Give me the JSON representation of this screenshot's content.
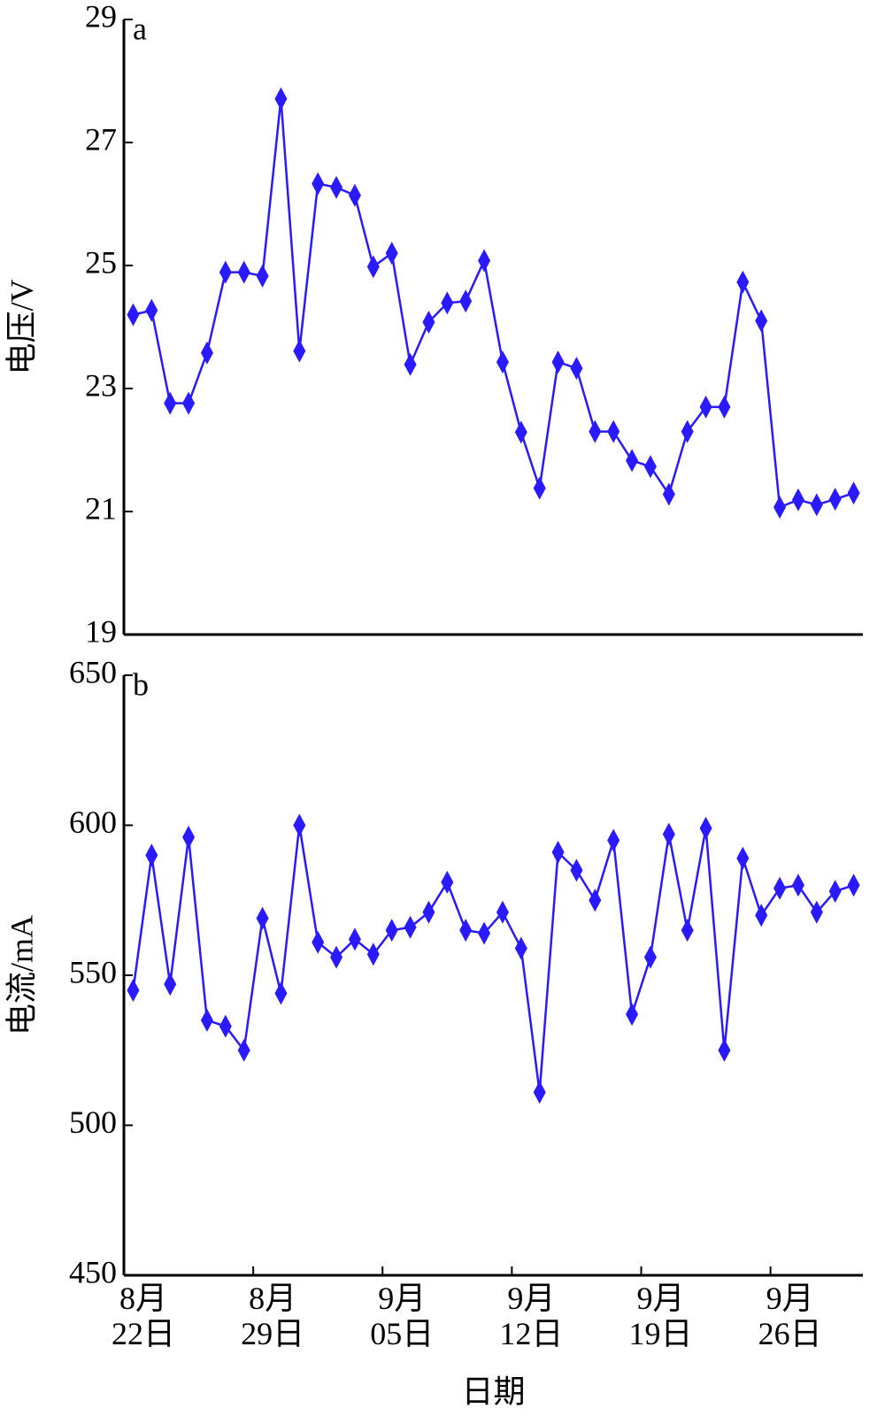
{
  "chart_data": [
    {
      "type": "line",
      "panel_label": "a",
      "ylabel": "电压/V",
      "ylim": [
        19,
        29
      ],
      "yticks": [
        19,
        21,
        23,
        25,
        27,
        29
      ],
      "series": [
        {
          "name": "电压",
          "color": "#2a1aff",
          "marker": "diamond",
          "values": [
            24.2,
            24.27,
            22.76,
            22.76,
            23.58,
            24.89,
            24.89,
            24.83,
            27.71,
            23.61,
            26.33,
            26.27,
            26.14,
            24.98,
            25.2,
            23.39,
            24.08,
            24.39,
            24.42,
            25.08,
            23.43,
            22.29,
            21.38,
            23.43,
            23.33,
            22.3,
            22.3,
            21.83,
            21.73,
            21.28,
            22.3,
            22.7,
            22.7,
            24.73,
            24.1,
            21.07,
            21.19,
            21.11,
            21.2,
            21.3
          ]
        }
      ]
    },
    {
      "type": "line",
      "panel_label": "b",
      "ylabel": "电流/mA",
      "xlabel": "日期",
      "ylim": [
        450,
        650
      ],
      "yticks": [
        450,
        500,
        550,
        600,
        650
      ],
      "categories": [
        "8月\n22日",
        null,
        null,
        null,
        null,
        null,
        null,
        "8月\n29日",
        null,
        null,
        null,
        null,
        null,
        null,
        "9月\n05日",
        null,
        null,
        null,
        null,
        null,
        null,
        "9月\n12日",
        null,
        null,
        null,
        null,
        null,
        null,
        "9月\n19日",
        null,
        null,
        null,
        null,
        null,
        null,
        "9月\n26日",
        null,
        null,
        null,
        null
      ],
      "series": [
        {
          "name": "电流",
          "color": "#2a1aff",
          "marker": "diamond",
          "values": [
            545,
            590,
            547,
            596,
            535,
            533,
            525,
            569,
            544,
            600,
            561,
            556,
            562,
            557,
            565,
            566,
            571,
            581,
            565,
            564,
            571,
            559,
            511,
            591,
            585,
            575,
            595,
            537,
            556,
            597,
            565,
            599,
            525,
            589,
            570,
            579,
            580,
            571,
            578,
            580
          ]
        }
      ]
    }
  ]
}
